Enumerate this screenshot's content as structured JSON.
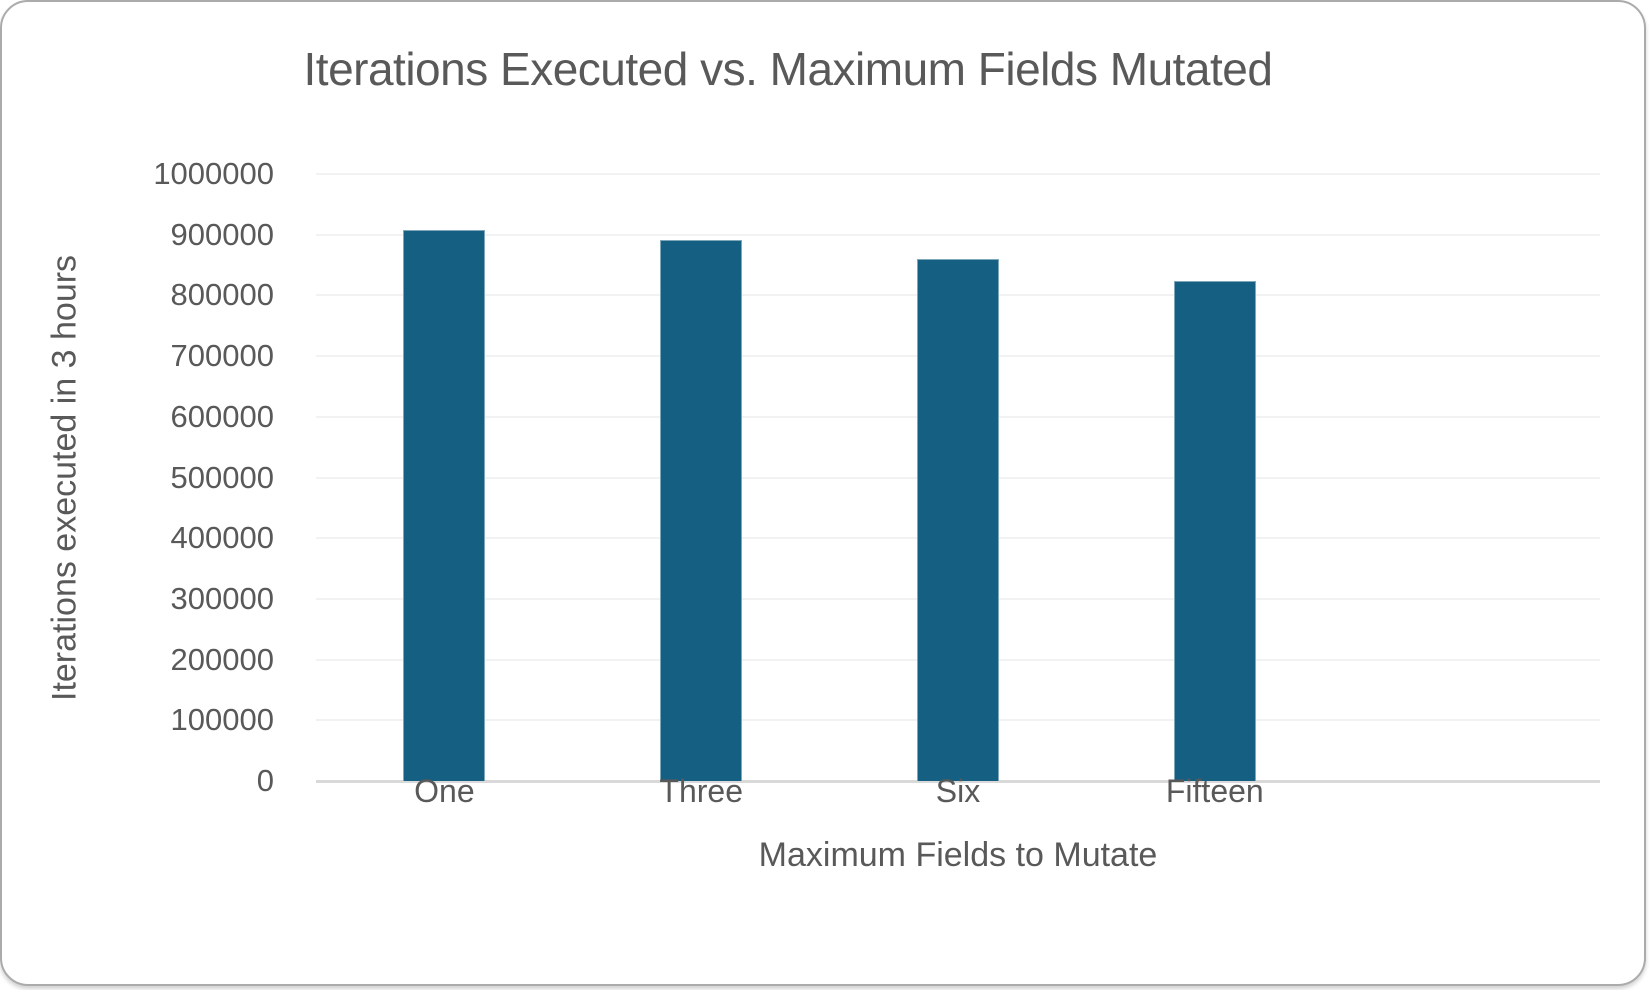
{
  "chart_data": {
    "type": "bar",
    "title": "Iterations Executed vs. Maximum Fields Mutated",
    "categories": [
      "One",
      "Three",
      "Six",
      "Fifteen"
    ],
    "values": [
      908000,
      891000,
      860000,
      823000
    ],
    "xlabel": "Maximum Fields to Mutate",
    "ylabel": "Iterations executed in 3 hours",
    "ylim": [
      0,
      1000000
    ],
    "ytick_step": 100000,
    "yticks": [
      0,
      100000,
      200000,
      300000,
      400000,
      500000,
      600000,
      700000,
      800000,
      900000,
      1000000
    ],
    "grid": true,
    "legend": "none",
    "plot_slots": 5,
    "bar_color": "#156082",
    "gridline_color": "#f2f2f2",
    "axis_line_color": "#d9d9d9",
    "text_color": "#595959",
    "frame_border_color": "#ababab"
  }
}
